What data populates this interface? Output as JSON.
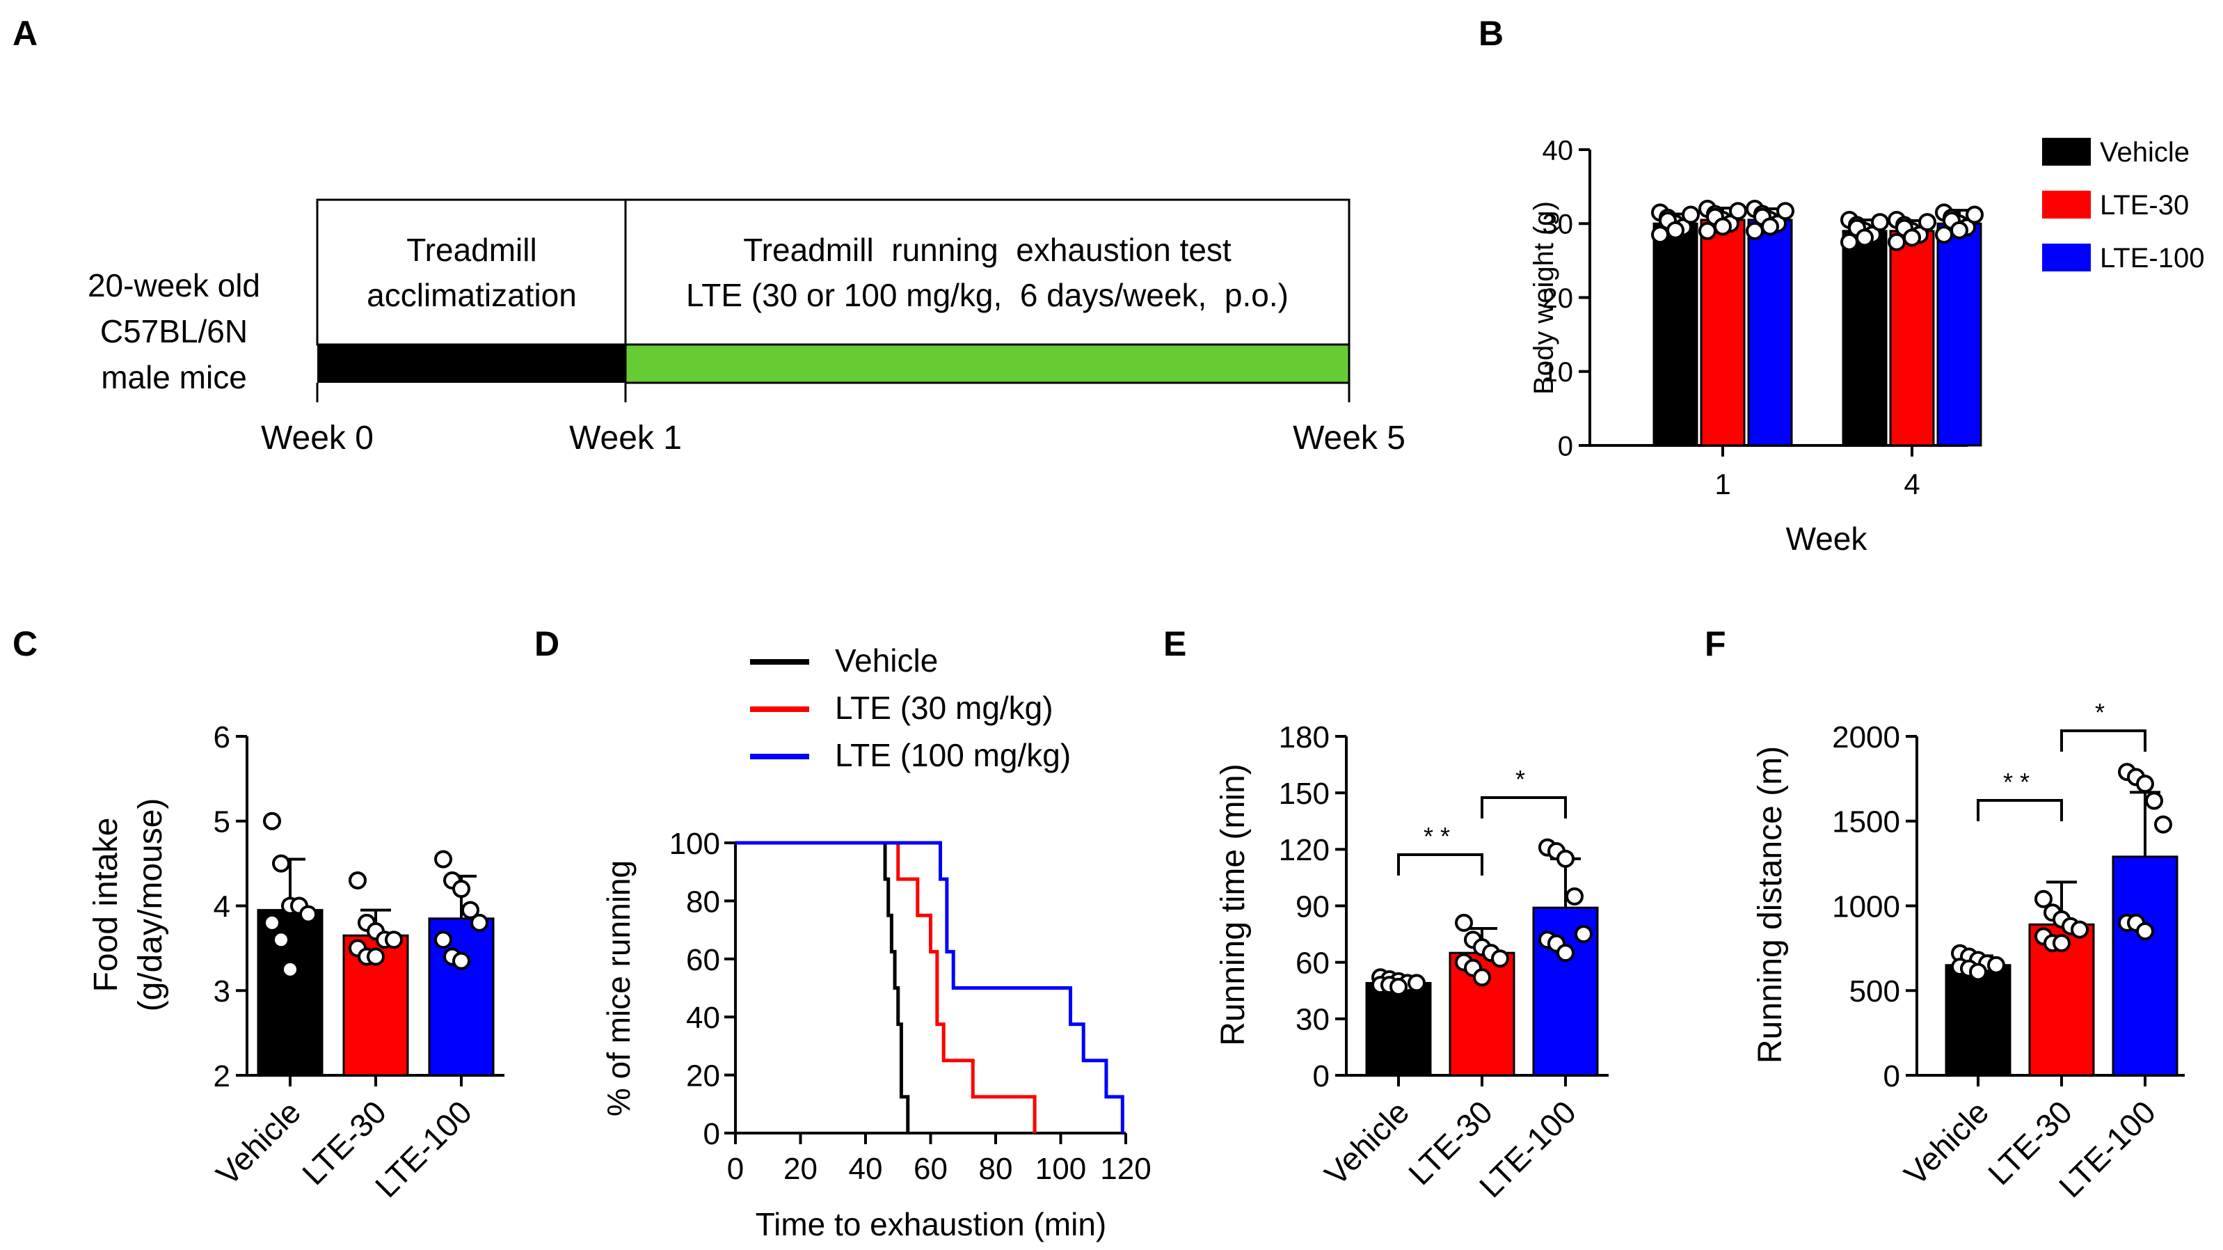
{
  "colors": {
    "vehicle": "#000000",
    "lte30": "#ff0000",
    "lte100": "#0000ff",
    "green": "#66cc33"
  },
  "panel_letters": {
    "a": "A",
    "b": "B",
    "c": "C",
    "d": "D",
    "e": "E",
    "f": "F"
  },
  "timeline": {
    "mice_lines": [
      "20-week old",
      "C57BL/6N",
      "male mice"
    ],
    "phase1_lines": [
      "Treadmill",
      "acclimatization"
    ],
    "phase2_lines": [
      "Treadmill  running  exhaustion test",
      "LTE (30 or 100 mg/kg,  6 days/week,  p.o.)"
    ],
    "week_labels": [
      "Week 0",
      "Week 1",
      "Week 5"
    ]
  },
  "chart_data": [
    {
      "panel": "B",
      "type": "bar",
      "xlabel": "Week",
      "ylabel": "Body weight (g)",
      "ylim": [
        0,
        40
      ],
      "yticks": [
        0,
        10,
        20,
        30,
        40
      ],
      "categories": [
        "1",
        "4"
      ],
      "series": [
        {
          "name": "Vehicle",
          "values": [
            30,
            29
          ],
          "sd": [
            1.3,
            1.5
          ]
        },
        {
          "name": "LTE-30",
          "values": [
            30.5,
            29
          ],
          "sd": [
            1.6,
            1.4
          ]
        },
        {
          "name": "LTE-100",
          "values": [
            30.5,
            30
          ],
          "sd": [
            1.5,
            1.8
          ]
        }
      ],
      "legend": [
        "Vehicle",
        "LTE-30",
        "LTE-100"
      ]
    },
    {
      "panel": "C",
      "type": "bar",
      "xlabel": "",
      "ylabel_lines": [
        "Food intake",
        "(g/day/mouse)"
      ],
      "ylim": [
        2,
        6
      ],
      "yticks": [
        2,
        3,
        4,
        5,
        6
      ],
      "categories": [
        "Vehicle",
        "LTE-30",
        "LTE-100"
      ],
      "values": [
        3.95,
        3.65,
        3.85
      ],
      "sd": [
        0.6,
        0.3,
        0.5
      ],
      "points": [
        [
          5.0,
          4.5,
          4.0,
          4.0,
          3.9,
          3.8,
          3.6,
          3.25
        ],
        [
          4.3,
          3.8,
          3.7,
          3.6,
          3.6,
          3.5,
          3.4,
          3.4
        ],
        [
          4.55,
          4.3,
          4.2,
          3.95,
          3.8,
          3.6,
          3.4,
          3.35
        ]
      ]
    },
    {
      "panel": "D",
      "type": "line",
      "xlabel": "Time to exhaustion (min)",
      "ylabel": "% of mice running",
      "xlim": [
        0,
        120
      ],
      "ylim": [
        0,
        100
      ],
      "xticks": [
        0,
        20,
        40,
        60,
        80,
        100,
        120
      ],
      "yticks": [
        0,
        20,
        40,
        60,
        80,
        100
      ],
      "series": [
        {
          "name": "Vehicle",
          "x": [
            0,
            46,
            46,
            47,
            47,
            48,
            48,
            49,
            49,
            50,
            50,
            51,
            51,
            53,
            53
          ],
          "y": [
            100,
            100,
            87.5,
            87.5,
            75,
            75,
            62.5,
            62.5,
            50,
            50,
            37.5,
            37.5,
            12.5,
            12.5,
            0
          ]
        },
        {
          "name": "LTE (30 mg/kg)",
          "x": [
            0,
            50,
            50,
            56,
            56,
            60,
            60,
            62,
            62,
            64,
            64,
            73,
            73,
            92,
            92
          ],
          "y": [
            100,
            100,
            87.5,
            87.5,
            75,
            75,
            62.5,
            62.5,
            37.5,
            37.5,
            25,
            25,
            12.5,
            12.5,
            0
          ]
        },
        {
          "name": "LTE (100 mg/kg)",
          "x": [
            0,
            63,
            63,
            65,
            65,
            67,
            67,
            103,
            103,
            107,
            107,
            114,
            114,
            119,
            119
          ],
          "y": [
            100,
            100,
            87.5,
            87.5,
            62.5,
            62.5,
            50,
            50,
            37.5,
            37.5,
            25,
            25,
            12.5,
            12.5,
            0
          ]
        }
      ],
      "legend": [
        "Vehicle",
        "LTE (30 mg/kg)",
        "LTE (100 mg/kg)"
      ]
    },
    {
      "panel": "E",
      "type": "bar",
      "xlabel": "",
      "ylabel": "Running time (min)",
      "ylim": [
        0,
        180
      ],
      "yticks": [
        0,
        30,
        60,
        90,
        120,
        150,
        180
      ],
      "categories": [
        "Vehicle",
        "LTE-30",
        "LTE-100"
      ],
      "values": [
        49,
        65,
        89
      ],
      "sd": [
        3,
        13,
        26
      ],
      "points": [
        [
          52,
          51,
          50,
          49,
          49,
          48,
          48,
          47
        ],
        [
          81,
          72,
          68,
          65,
          62,
          60,
          57,
          52
        ],
        [
          121,
          119,
          115,
          95,
          75,
          72,
          70,
          65
        ]
      ],
      "significance": [
        {
          "from": 0,
          "to": 1,
          "label": "**"
        },
        {
          "from": 1,
          "to": 2,
          "label": "*"
        }
      ]
    },
    {
      "panel": "F",
      "type": "bar",
      "xlabel": "",
      "ylabel": "Running distance (m)",
      "ylim": [
        0,
        2000
      ],
      "yticks": [
        0,
        500,
        1000,
        1500,
        2000
      ],
      "categories": [
        "Vehicle",
        "LTE-30",
        "LTE-100"
      ],
      "values": [
        650,
        890,
        1290
      ],
      "sd": [
        55,
        250,
        380
      ],
      "points": [
        [
          720,
          700,
          680,
          660,
          650,
          640,
          630,
          610
        ],
        [
          1040,
          960,
          920,
          880,
          860,
          820,
          780,
          780
        ],
        [
          1790,
          1760,
          1720,
          1620,
          1480,
          900,
          900,
          850
        ]
      ],
      "significance": [
        {
          "from": 0,
          "to": 1,
          "label": "**"
        },
        {
          "from": 1,
          "to": 2,
          "label": "*"
        }
      ]
    }
  ]
}
